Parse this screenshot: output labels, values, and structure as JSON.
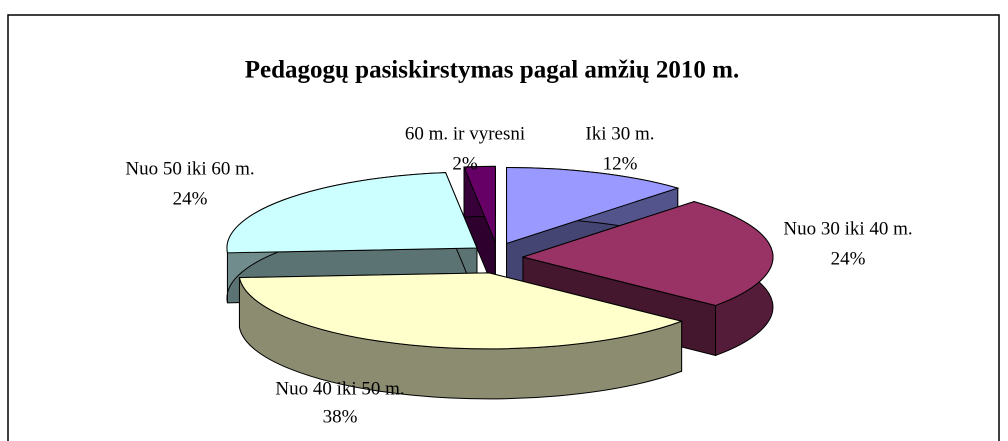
{
  "chart_data": {
    "type": "pie3d",
    "title": "Pedagogų pasiskirstymas pagal amžių 2010 m.",
    "categories": [
      "Iki 30 m.",
      "Nuo 30 iki 40 m.",
      "Nuo 40 iki 50 m.",
      "Nuo 50 iki 60 m.",
      "60 m. ir vyresni"
    ],
    "values": [
      12,
      24,
      38,
      24,
      2
    ],
    "value_labels": [
      "12%",
      "24%",
      "38%",
      "24%",
      "2%"
    ],
    "colors": [
      "#9999ff",
      "#993366",
      "#ffffcc",
      "#ccffff",
      "#660066"
    ]
  }
}
